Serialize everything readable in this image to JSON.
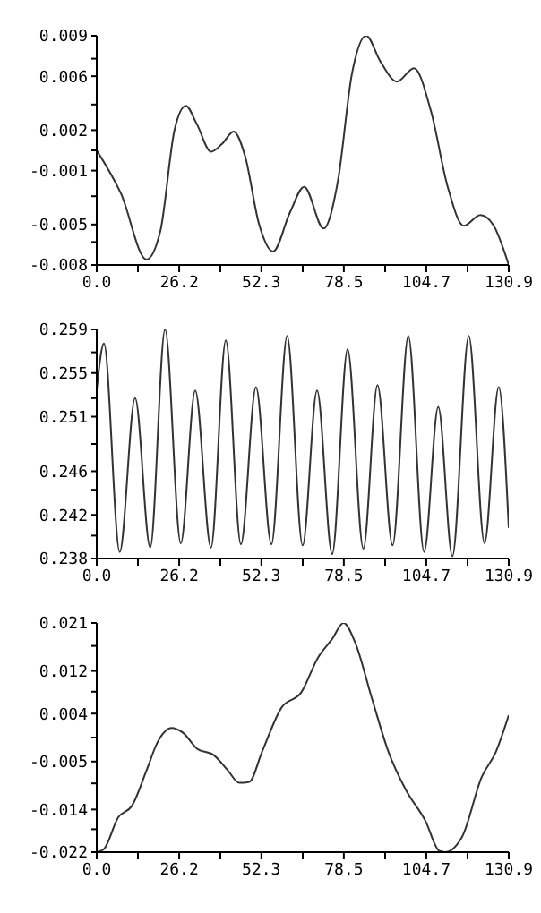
{
  "chart_data": [
    {
      "type": "line",
      "color": "#333333",
      "marker": "none",
      "grid": false,
      "legend": false,
      "x": [
        0,
        7.7,
        15.8,
        20.2,
        24.7,
        28.3,
        31.9,
        36.3,
        39.9,
        43.5,
        47.1,
        51.6,
        56.0,
        61.4,
        65.9,
        72.1,
        76.6,
        81.1,
        85.6,
        90.1,
        95.4,
        100.8,
        106.2,
        111.5,
        116.6,
        121.9,
        125.9,
        130.9
      ],
      "values": [
        0.0005,
        -0.0027,
        -0.0076,
        -0.0055,
        0.002,
        0.0038,
        0.0024,
        0.0004,
        0.001,
        0.0019,
        0.0001,
        -0.005,
        -0.007,
        -0.0041,
        -0.0022,
        -0.0053,
        -0.0018,
        0.0062,
        0.009,
        0.0071,
        0.0056,
        0.0066,
        0.0034,
        -0.0022,
        -0.0051,
        -0.0043,
        -0.005,
        -0.008
      ],
      "xlim": [
        0,
        130.9
      ],
      "xticks": [
        {
          "value": 0,
          "label": "0.0"
        },
        {
          "value": 13.09,
          "label": null
        },
        26.2,
        {
          "value": 39.27,
          "label": null
        },
        52.3,
        {
          "value": 65.45,
          "label": null
        },
        78.5,
        {
          "value": 91.63,
          "label": null
        },
        104.7,
        {
          "value": 117.81,
          "label": null
        },
        130.9
      ],
      "ylim": [
        -0.008,
        0.009
      ],
      "yticks": [
        -0.008,
        {
          "value": -0.0063,
          "label": null
        },
        -0.005,
        {
          "value": -0.0029,
          "label": null
        },
        -0.001,
        {
          "value": 0.0005,
          "label": null
        },
        0.002,
        {
          "value": 0.0039,
          "label": null
        },
        0.006,
        {
          "value": 0.0073,
          "label": null
        },
        0.009
      ]
    },
    {
      "type": "line",
      "color": "#333333",
      "marker": "none",
      "grid": false,
      "legend": false,
      "x": [
        0,
        2.3,
        7.3,
        12.2,
        17.0,
        21.7,
        26.7,
        31.3,
        36.3,
        41.0,
        45.8,
        50.6,
        55.5,
        60.5,
        65.4,
        70.0,
        74.8,
        79.7,
        84.7,
        89.2,
        94.0,
        99.0,
        104.0,
        108.5,
        113.0,
        118.2,
        123.2,
        127.7,
        130.9
      ],
      "values": [
        0.2535,
        0.2577,
        0.2386,
        0.2527,
        0.239,
        0.259,
        0.2394,
        0.2534,
        0.239,
        0.258,
        0.2393,
        0.2537,
        0.2393,
        0.2584,
        0.2392,
        0.2534,
        0.2384,
        0.2572,
        0.2389,
        0.2539,
        0.2392,
        0.2584,
        0.2386,
        0.2519,
        0.2382,
        0.2584,
        0.2394,
        0.2537,
        0.2408
      ],
      "xlim": [
        0,
        130.9
      ],
      "xticks": [
        {
          "value": 0,
          "label": "0.0"
        },
        {
          "value": 13.09,
          "label": null
        },
        26.2,
        {
          "value": 39.27,
          "label": null
        },
        52.3,
        {
          "value": 65.45,
          "label": null
        },
        78.5,
        {
          "value": 91.63,
          "label": null
        },
        104.7,
        {
          "value": 117.81,
          "label": null
        },
        130.9
      ],
      "ylim": [
        0.238,
        0.259
      ],
      "yticks": [
        0.238,
        {
          "value": 0.2401,
          "label": null
        },
        0.242,
        {
          "value": 0.2443,
          "label": null
        },
        0.246,
        {
          "value": 0.2485,
          "label": null
        },
        0.251,
        {
          "value": 0.2527,
          "label": null
        },
        0.255,
        {
          "value": 0.2569,
          "label": null
        },
        0.259
      ]
    },
    {
      "type": "line",
      "color": "#333333",
      "marker": "none",
      "grid": false,
      "legend": false,
      "x": [
        0,
        2.3,
        6.8,
        11.3,
        15.8,
        19.3,
        23.8,
        27.4,
        31.9,
        37.2,
        41.7,
        45.3,
        48.5,
        52.5,
        58.7,
        65.0,
        70.3,
        74.8,
        78.4,
        82.0,
        87.4,
        92.7,
        98.1,
        104.4,
        108.9,
        110.7,
        116.1,
        122.3,
        126.8,
        130.9
      ],
      "values": [
        -0.022,
        -0.0214,
        -0.0155,
        -0.0132,
        -0.0067,
        -0.0014,
        0.0013,
        0.0004,
        -0.0026,
        -0.0038,
        -0.0067,
        -0.009,
        -0.0088,
        -0.0032,
        0.0051,
        0.008,
        0.0145,
        0.018,
        0.021,
        0.0175,
        0.0069,
        -0.0032,
        -0.0102,
        -0.0161,
        -0.0218,
        -0.022,
        -0.0191,
        -0.0079,
        -0.0032,
        0.0037
      ],
      "xlim": [
        0,
        130.9
      ],
      "xticks": [
        {
          "value": 0,
          "label": "0.0"
        },
        {
          "value": 13.09,
          "label": null
        },
        26.2,
        {
          "value": 39.27,
          "label": null
        },
        52.3,
        {
          "value": 65.45,
          "label": null
        },
        78.5,
        {
          "value": 91.63,
          "label": null
        },
        104.7,
        {
          "value": 117.81,
          "label": null
        },
        130.9
      ],
      "ylim": [
        -0.022,
        0.021
      ],
      "yticks": [
        -0.022,
        {
          "value": -0.0177,
          "label": null
        },
        -0.014,
        {
          "value": -0.0091,
          "label": null
        },
        -0.005,
        {
          "value": -0.0005,
          "label": null
        },
        0.004,
        {
          "value": 0.0081,
          "label": null
        },
        0.012,
        {
          "value": 0.0167,
          "label": null
        },
        0.021
      ]
    }
  ]
}
